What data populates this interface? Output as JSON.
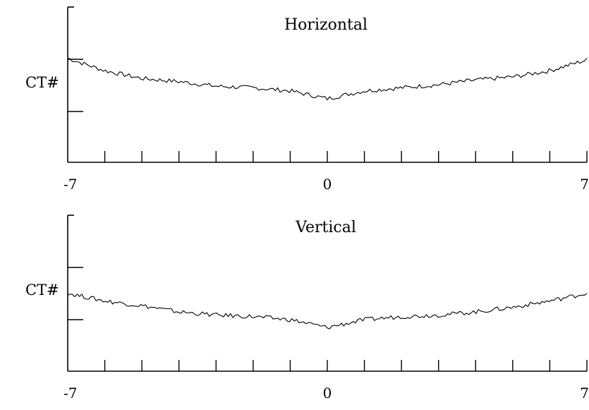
{
  "chart_data": [
    {
      "type": "line",
      "title": "Horizontal",
      "ylabel": "CT#",
      "xlabel": "",
      "x_ticks": [
        -7,
        0,
        7
      ],
      "xlim": [
        -7,
        7
      ],
      "ylim": [
        0,
        10
      ],
      "grid": false,
      "series": [
        {
          "x": [
            -7,
            -6,
            -5,
            -4,
            -3,
            -2,
            -1,
            0,
            1,
            2,
            3,
            4,
            5,
            6,
            7
          ],
          "y": [
            6.7,
            5.9,
            5.4,
            5.2,
            4.9,
            4.8,
            4.6,
            4.1,
            4.6,
            4.8,
            5.0,
            5.3,
            5.5,
            5.9,
            6.6
          ]
        }
      ]
    },
    {
      "type": "line",
      "title": "Vertical",
      "ylabel": "CT#",
      "xlabel": "",
      "x_ticks": [
        -7,
        0,
        7
      ],
      "xlim": [
        -7,
        7
      ],
      "ylim": [
        0,
        10
      ],
      "grid": false,
      "series": [
        {
          "x": [
            -7,
            -6,
            -5,
            -4,
            -3,
            -2,
            -1,
            0,
            1,
            2,
            3,
            4,
            5,
            6,
            7
          ],
          "y": [
            5.0,
            4.5,
            4.2,
            3.8,
            3.6,
            3.5,
            3.3,
            2.8,
            3.3,
            3.5,
            3.6,
            3.8,
            4.1,
            4.5,
            5.0
          ]
        }
      ]
    }
  ]
}
